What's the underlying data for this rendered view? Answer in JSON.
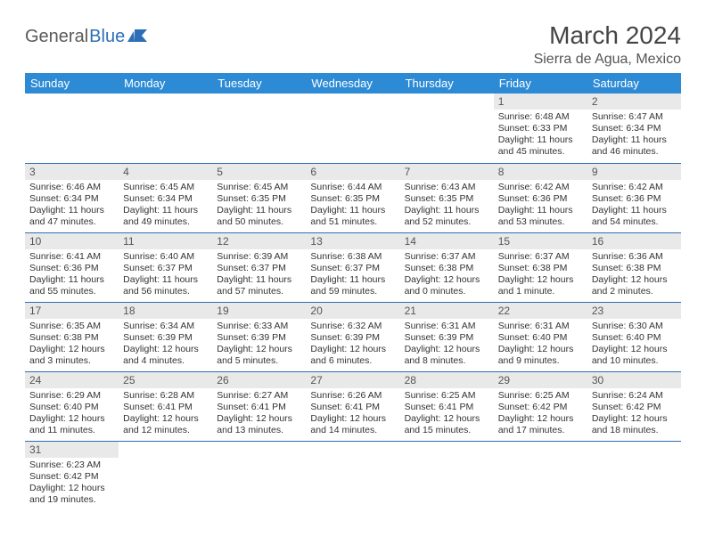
{
  "logo": {
    "text1": "General",
    "text2": "Blue"
  },
  "title": "March 2024",
  "location": "Sierra de Agua, Mexico",
  "colors": {
    "header_bg": "#2d8bd6",
    "header_text": "#ffffff",
    "daynum_bg": "#e9e9e9",
    "border": "#2d6fb6",
    "logo_gray": "#5a5a5a",
    "logo_blue": "#2d6fb6"
  },
  "weekdays": [
    "Sunday",
    "Monday",
    "Tuesday",
    "Wednesday",
    "Thursday",
    "Friday",
    "Saturday"
  ],
  "weeks": [
    [
      null,
      null,
      null,
      null,
      null,
      {
        "n": "1",
        "sr": "6:48 AM",
        "ss": "6:33 PM",
        "dl": "11 hours and 45 minutes."
      },
      {
        "n": "2",
        "sr": "6:47 AM",
        "ss": "6:34 PM",
        "dl": "11 hours and 46 minutes."
      }
    ],
    [
      {
        "n": "3",
        "sr": "6:46 AM",
        "ss": "6:34 PM",
        "dl": "11 hours and 47 minutes."
      },
      {
        "n": "4",
        "sr": "6:45 AM",
        "ss": "6:34 PM",
        "dl": "11 hours and 49 minutes."
      },
      {
        "n": "5",
        "sr": "6:45 AM",
        "ss": "6:35 PM",
        "dl": "11 hours and 50 minutes."
      },
      {
        "n": "6",
        "sr": "6:44 AM",
        "ss": "6:35 PM",
        "dl": "11 hours and 51 minutes."
      },
      {
        "n": "7",
        "sr": "6:43 AM",
        "ss": "6:35 PM",
        "dl": "11 hours and 52 minutes."
      },
      {
        "n": "8",
        "sr": "6:42 AM",
        "ss": "6:36 PM",
        "dl": "11 hours and 53 minutes."
      },
      {
        "n": "9",
        "sr": "6:42 AM",
        "ss": "6:36 PM",
        "dl": "11 hours and 54 minutes."
      }
    ],
    [
      {
        "n": "10",
        "sr": "6:41 AM",
        "ss": "6:36 PM",
        "dl": "11 hours and 55 minutes."
      },
      {
        "n": "11",
        "sr": "6:40 AM",
        "ss": "6:37 PM",
        "dl": "11 hours and 56 minutes."
      },
      {
        "n": "12",
        "sr": "6:39 AM",
        "ss": "6:37 PM",
        "dl": "11 hours and 57 minutes."
      },
      {
        "n": "13",
        "sr": "6:38 AM",
        "ss": "6:37 PM",
        "dl": "11 hours and 59 minutes."
      },
      {
        "n": "14",
        "sr": "6:37 AM",
        "ss": "6:38 PM",
        "dl": "12 hours and 0 minutes."
      },
      {
        "n": "15",
        "sr": "6:37 AM",
        "ss": "6:38 PM",
        "dl": "12 hours and 1 minute."
      },
      {
        "n": "16",
        "sr": "6:36 AM",
        "ss": "6:38 PM",
        "dl": "12 hours and 2 minutes."
      }
    ],
    [
      {
        "n": "17",
        "sr": "6:35 AM",
        "ss": "6:38 PM",
        "dl": "12 hours and 3 minutes."
      },
      {
        "n": "18",
        "sr": "6:34 AM",
        "ss": "6:39 PM",
        "dl": "12 hours and 4 minutes."
      },
      {
        "n": "19",
        "sr": "6:33 AM",
        "ss": "6:39 PM",
        "dl": "12 hours and 5 minutes."
      },
      {
        "n": "20",
        "sr": "6:32 AM",
        "ss": "6:39 PM",
        "dl": "12 hours and 6 minutes."
      },
      {
        "n": "21",
        "sr": "6:31 AM",
        "ss": "6:39 PM",
        "dl": "12 hours and 8 minutes."
      },
      {
        "n": "22",
        "sr": "6:31 AM",
        "ss": "6:40 PM",
        "dl": "12 hours and 9 minutes."
      },
      {
        "n": "23",
        "sr": "6:30 AM",
        "ss": "6:40 PM",
        "dl": "12 hours and 10 minutes."
      }
    ],
    [
      {
        "n": "24",
        "sr": "6:29 AM",
        "ss": "6:40 PM",
        "dl": "12 hours and 11 minutes."
      },
      {
        "n": "25",
        "sr": "6:28 AM",
        "ss": "6:41 PM",
        "dl": "12 hours and 12 minutes."
      },
      {
        "n": "26",
        "sr": "6:27 AM",
        "ss": "6:41 PM",
        "dl": "12 hours and 13 minutes."
      },
      {
        "n": "27",
        "sr": "6:26 AM",
        "ss": "6:41 PM",
        "dl": "12 hours and 14 minutes."
      },
      {
        "n": "28",
        "sr": "6:25 AM",
        "ss": "6:41 PM",
        "dl": "12 hours and 15 minutes."
      },
      {
        "n": "29",
        "sr": "6:25 AM",
        "ss": "6:42 PM",
        "dl": "12 hours and 17 minutes."
      },
      {
        "n": "30",
        "sr": "6:24 AM",
        "ss": "6:42 PM",
        "dl": "12 hours and 18 minutes."
      }
    ],
    [
      {
        "n": "31",
        "sr": "6:23 AM",
        "ss": "6:42 PM",
        "dl": "12 hours and 19 minutes."
      },
      null,
      null,
      null,
      null,
      null,
      null
    ]
  ],
  "labels": {
    "sunrise": "Sunrise:",
    "sunset": "Sunset:",
    "daylight": "Daylight:"
  }
}
